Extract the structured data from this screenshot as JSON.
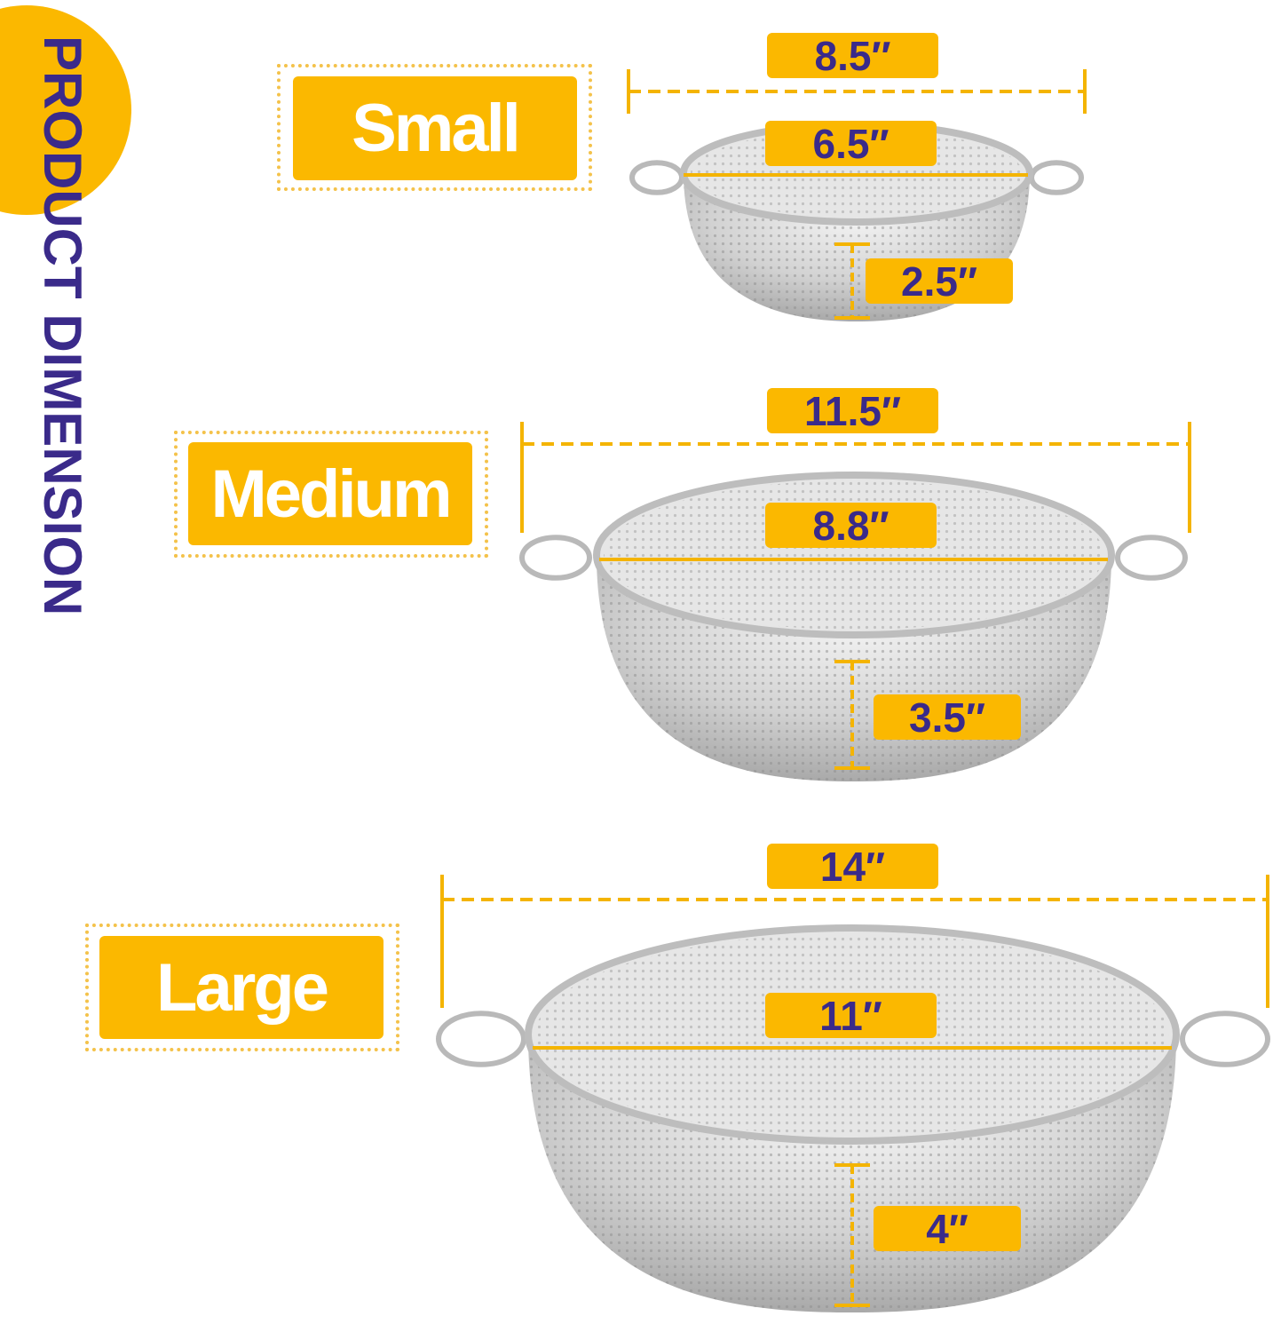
{
  "title": "PRODUCT DIMENSION",
  "colors": {
    "accent": "#fbb800",
    "text": "#3a2a8a",
    "label_text": "#ffffff"
  },
  "sizes": [
    {
      "name": "Small",
      "outer_width": "8.5″",
      "inner_width": "6.5″",
      "depth": "2.5″"
    },
    {
      "name": "Medium",
      "outer_width": "11.5″",
      "inner_width": "8.8″",
      "depth": "3.5″"
    },
    {
      "name": "Large",
      "outer_width": "14″",
      "inner_width": "11″",
      "depth": "4″"
    }
  ]
}
